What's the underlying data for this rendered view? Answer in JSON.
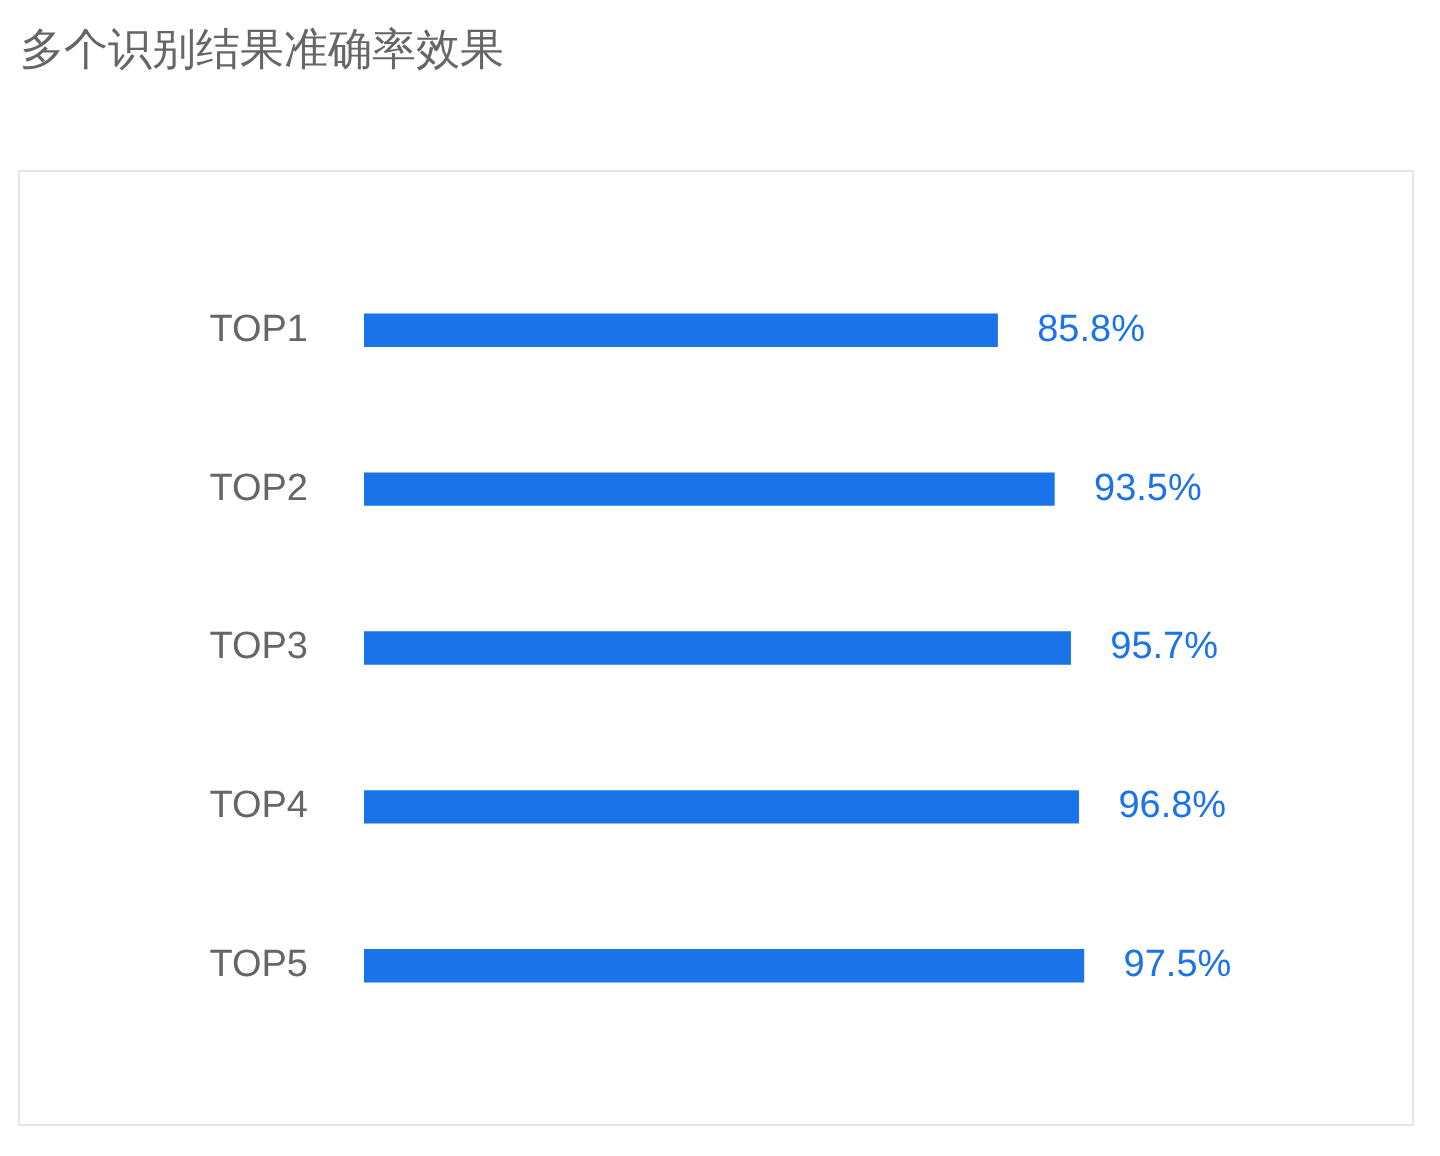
{
  "chart_data": {
    "type": "bar",
    "orientation": "horizontal",
    "title": "多个识别结果准确率效果",
    "categories": [
      "TOP1",
      "TOP2",
      "TOP3",
      "TOP4",
      "TOP5"
    ],
    "values": [
      85.8,
      93.5,
      95.7,
      96.8,
      97.5
    ],
    "value_labels": [
      "85.8%",
      "93.5%",
      "95.7%",
      "96.8%",
      "97.5%"
    ],
    "color": "#1a73e8",
    "tick_labels": "y",
    "legend": false
  }
}
